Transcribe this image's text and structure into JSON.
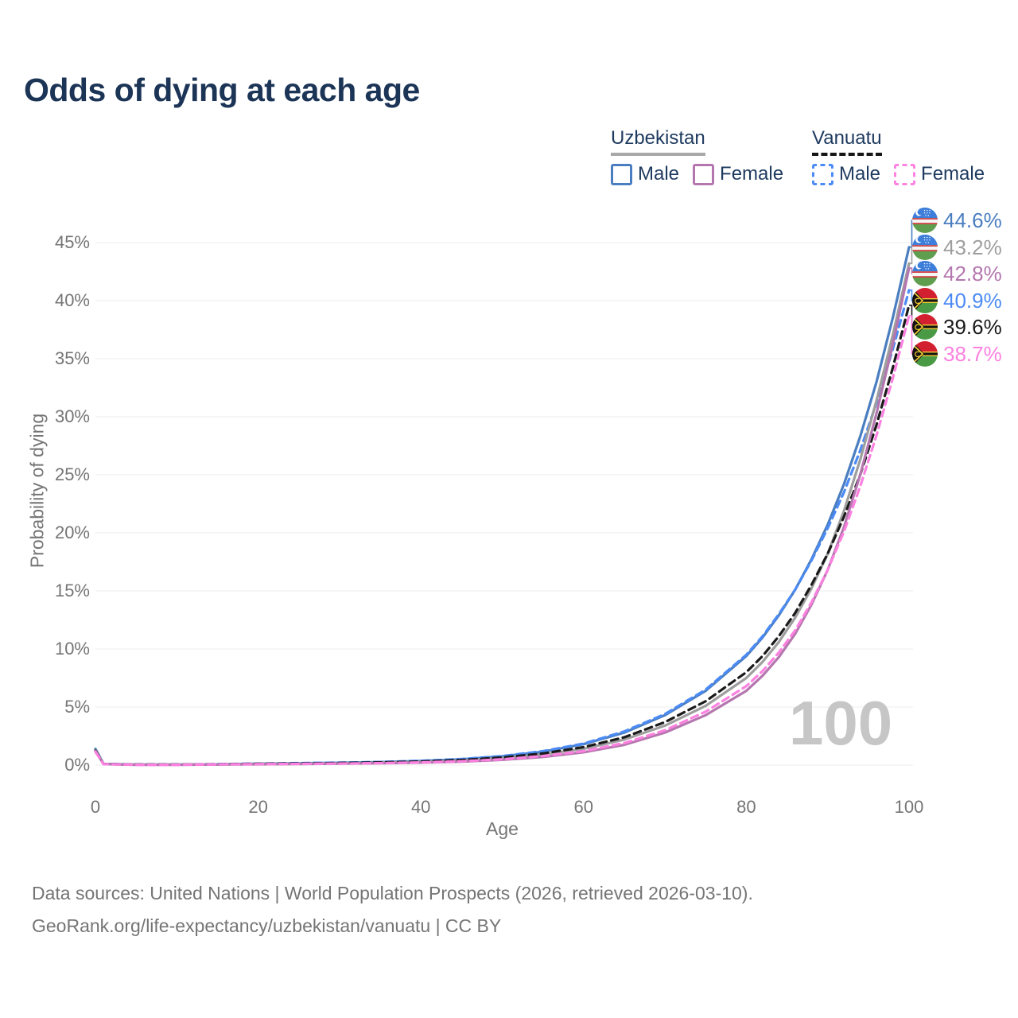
{
  "title": "Odds of dying at each age",
  "watermark": "100",
  "legend": {
    "groups": [
      {
        "name": "Uzbekistan",
        "line_style": "solid",
        "underline_color": "#a8a8a8",
        "items": [
          {
            "label": "Male",
            "color": "#4a7ec0"
          },
          {
            "label": "Female",
            "color": "#b476ae"
          }
        ]
      },
      {
        "name": "Vanuatu",
        "line_style": "dashed",
        "underline_color": "#161616",
        "items": [
          {
            "label": "Male",
            "color": "#4c8bf5"
          },
          {
            "label": "Female",
            "color": "#fc81e0"
          }
        ]
      }
    ]
  },
  "axes": {
    "x": {
      "label": "Age",
      "ticks": [
        0,
        20,
        40,
        60,
        80,
        100
      ],
      "min": 0,
      "max": 100
    },
    "y": {
      "label": "Probability of dying",
      "ticks": [
        0,
        5,
        10,
        15,
        20,
        25,
        30,
        35,
        40,
        45
      ],
      "unit": "%",
      "min": 0,
      "max": 45
    }
  },
  "end_labels": [
    {
      "value": "44.6%",
      "series": "Uzbekistan Male",
      "flag": "uzbekistan-flag-icon",
      "color": "#4a7ec0"
    },
    {
      "value": "43.2%",
      "series": "Uzbekistan Both sexes",
      "flag": "uzbekistan-flag-icon",
      "color": "#9e9e9e"
    },
    {
      "value": "42.8%",
      "series": "Uzbekistan Female",
      "flag": "uzbekistan-flag-icon",
      "color": "#b476ae"
    },
    {
      "value": "40.9%",
      "series": "Vanuatu Male",
      "flag": "vanuatu-flag-icon",
      "color": "#4c8bf5"
    },
    {
      "value": "39.6%",
      "series": "Vanuatu Both sexes",
      "flag": "vanuatu-flag-icon",
      "color": "#1a1a1a"
    },
    {
      "value": "38.7%",
      "series": "Vanuatu Female",
      "flag": "vanuatu-flag-icon",
      "color": "#fc81e0"
    }
  ],
  "footer": {
    "line1": "Data sources: United Nations | World Population Prospects (2026, retrieved 2026-03-10).",
    "line2": "GeoRank.org/life-expectancy/uzbekistan/vanuatu | CC BY"
  },
  "chart_data": {
    "type": "line",
    "title": "Odds of dying at each age",
    "xlabel": "Age",
    "ylabel": "Probability of dying",
    "xlim": [
      0,
      100
    ],
    "ylim": [
      0,
      45
    ],
    "y_unit": "percent",
    "grid": true,
    "legend_position": "top-right",
    "x": [
      0,
      1,
      5,
      10,
      15,
      20,
      25,
      30,
      35,
      40,
      45,
      50,
      55,
      60,
      65,
      70,
      75,
      80,
      82,
      84,
      86,
      88,
      90,
      92,
      94,
      96,
      98,
      100
    ],
    "series": [
      {
        "id": "uzbekistan-male",
        "name": "Uzbekistan Male",
        "country": "Uzbekistan",
        "sex": "Male",
        "color": "#4a7ec0",
        "dash": "solid",
        "end_label": "44.6%",
        "values": [
          1.4,
          0.1,
          0.05,
          0.05,
          0.07,
          0.12,
          0.16,
          0.2,
          0.26,
          0.35,
          0.5,
          0.75,
          1.15,
          1.8,
          2.8,
          4.3,
          6.4,
          9.4,
          11.0,
          12.9,
          15.1,
          17.7,
          20.7,
          24.2,
          28.3,
          33.0,
          38.5,
          44.6
        ]
      },
      {
        "id": "vanuatu-male",
        "name": "Vanuatu Male",
        "country": "Vanuatu",
        "sex": "Male",
        "color": "#4c8bf5",
        "dash": "dashed",
        "end_label": "40.9%",
        "values": [
          1.3,
          0.1,
          0.05,
          0.05,
          0.08,
          0.13,
          0.17,
          0.21,
          0.27,
          0.37,
          0.52,
          0.78,
          1.2,
          1.85,
          2.9,
          4.4,
          6.5,
          9.5,
          11.1,
          13.0,
          15.1,
          17.6,
          20.4,
          23.5,
          27.1,
          31.2,
          35.8,
          40.9
        ]
      },
      {
        "id": "uzbekistan-both",
        "name": "Uzbekistan Both sexes",
        "country": "Uzbekistan",
        "sex": "Both",
        "color": "#9e9e9e",
        "dash": "solid",
        "end_label": "43.2%",
        "values": [
          1.3,
          0.09,
          0.04,
          0.04,
          0.06,
          0.1,
          0.13,
          0.16,
          0.21,
          0.28,
          0.4,
          0.6,
          0.92,
          1.4,
          2.2,
          3.4,
          5.1,
          7.5,
          8.9,
          10.6,
          12.7,
          15.2,
          18.2,
          21.9,
          26.3,
          31.4,
          37.0,
          43.2
        ]
      },
      {
        "id": "vanuatu-both",
        "name": "Vanuatu Both sexes",
        "country": "Vanuatu",
        "sex": "Both",
        "color": "#1a1a1a",
        "dash": "dashed",
        "end_label": "39.6%",
        "values": [
          1.25,
          0.09,
          0.04,
          0.04,
          0.07,
          0.11,
          0.14,
          0.18,
          0.23,
          0.31,
          0.44,
          0.66,
          1.0,
          1.55,
          2.4,
          3.7,
          5.5,
          8.0,
          9.4,
          11.1,
          13.1,
          15.5,
          18.2,
          21.4,
          25.0,
          29.3,
          34.2,
          39.6
        ]
      },
      {
        "id": "uzbekistan-female",
        "name": "Uzbekistan Female",
        "country": "Uzbekistan",
        "sex": "Female",
        "color": "#b476ae",
        "dash": "solid",
        "end_label": "42.8%",
        "values": [
          1.2,
          0.08,
          0.03,
          0.03,
          0.05,
          0.07,
          0.09,
          0.12,
          0.16,
          0.21,
          0.3,
          0.45,
          0.7,
          1.1,
          1.75,
          2.8,
          4.3,
          6.4,
          7.7,
          9.3,
          11.3,
          13.8,
          16.8,
          20.5,
          25.0,
          30.3,
          36.2,
          42.8
        ]
      },
      {
        "id": "vanuatu-female",
        "name": "Vanuatu Female",
        "country": "Vanuatu",
        "sex": "Female",
        "color": "#fc81e0",
        "dash": "dashed",
        "end_label": "38.7%",
        "values": [
          1.15,
          0.08,
          0.03,
          0.03,
          0.06,
          0.08,
          0.1,
          0.13,
          0.17,
          0.23,
          0.33,
          0.5,
          0.78,
          1.2,
          1.9,
          3.0,
          4.6,
          6.8,
          8.1,
          9.7,
          11.6,
          14.0,
          16.8,
          20.1,
          24.0,
          28.4,
          33.3,
          38.7
        ]
      }
    ]
  }
}
